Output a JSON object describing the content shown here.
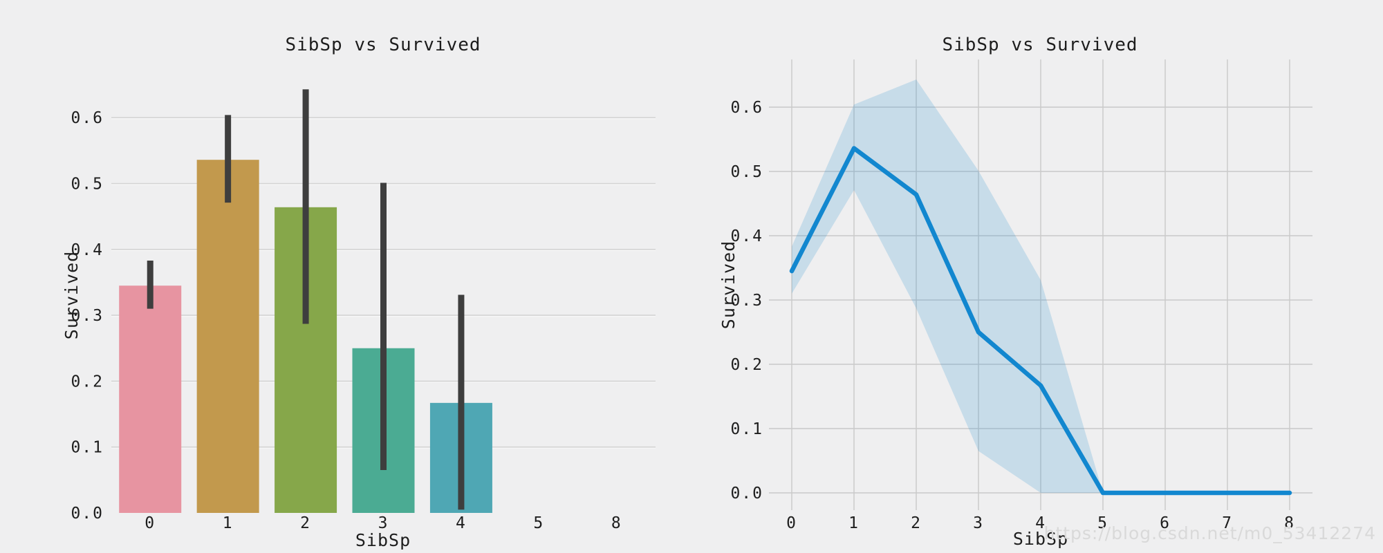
{
  "page": {
    "background": "#efeff0",
    "watermark": "https://blog.csdn.net/m0_53412274"
  },
  "chart_data": [
    {
      "type": "bar",
      "title": "SibSp vs Survived",
      "xlabel": "SibSp",
      "ylabel": "Survived",
      "categories": [
        "0",
        "1",
        "2",
        "3",
        "4",
        "5",
        "8"
      ],
      "values": [
        0.345,
        0.536,
        0.464,
        0.25,
        0.167,
        0,
        0
      ],
      "error_low": [
        0.31,
        0.471,
        0.287,
        0.065,
        0.005,
        null,
        null
      ],
      "error_high": [
        0.383,
        0.604,
        0.643,
        0.501,
        0.331,
        null,
        null
      ],
      "bar_colors": [
        "#e794a1",
        "#c2994d",
        "#86a74a",
        "#4bab93",
        "#4fa7b4",
        null,
        null
      ],
      "error_color": "#3e3e3e",
      "ytick_values": [
        0.0,
        0.1,
        0.2,
        0.3,
        0.4,
        0.5,
        0.6
      ],
      "ytick_labels": [
        "0.0",
        "0.1",
        "0.2",
        "0.3",
        "0.4",
        "0.5",
        "0.6"
      ],
      "ylim": [
        0,
        0.66
      ],
      "grid": "horizontal",
      "grid_color": "#d4d4d4",
      "legend": "none"
    },
    {
      "type": "line",
      "title": "SibSp vs Survived",
      "xlabel": "SibSp",
      "ylabel": "Survived",
      "x": [
        0,
        1,
        2,
        3,
        4,
        5,
        6,
        7,
        8
      ],
      "y": [
        0.345,
        0.536,
        0.464,
        0.25,
        0.167,
        0,
        0,
        0,
        0
      ],
      "band_low": [
        0.31,
        0.471,
        0.287,
        0.065,
        0.0,
        0,
        0,
        0,
        0
      ],
      "band_high": [
        0.383,
        0.604,
        0.643,
        0.501,
        0.331,
        0,
        0,
        0,
        0
      ],
      "xtick_labels": [
        "0",
        "1",
        "2",
        "3",
        "4",
        "5",
        "6",
        "7",
        "8"
      ],
      "ytick_values": [
        0.0,
        0.1,
        0.2,
        0.3,
        0.4,
        0.5,
        0.6
      ],
      "ytick_labels": [
        "0.0",
        "0.1",
        "0.2",
        "0.3",
        "0.4",
        "0.5",
        "0.6"
      ],
      "ylim": [
        -0.03,
        0.675
      ],
      "grid": "both",
      "grid_color": "#c9c9c9",
      "line_color": "#1287cf",
      "band_color": "rgba(18,135,207,0.18)",
      "legend": "none"
    }
  ]
}
